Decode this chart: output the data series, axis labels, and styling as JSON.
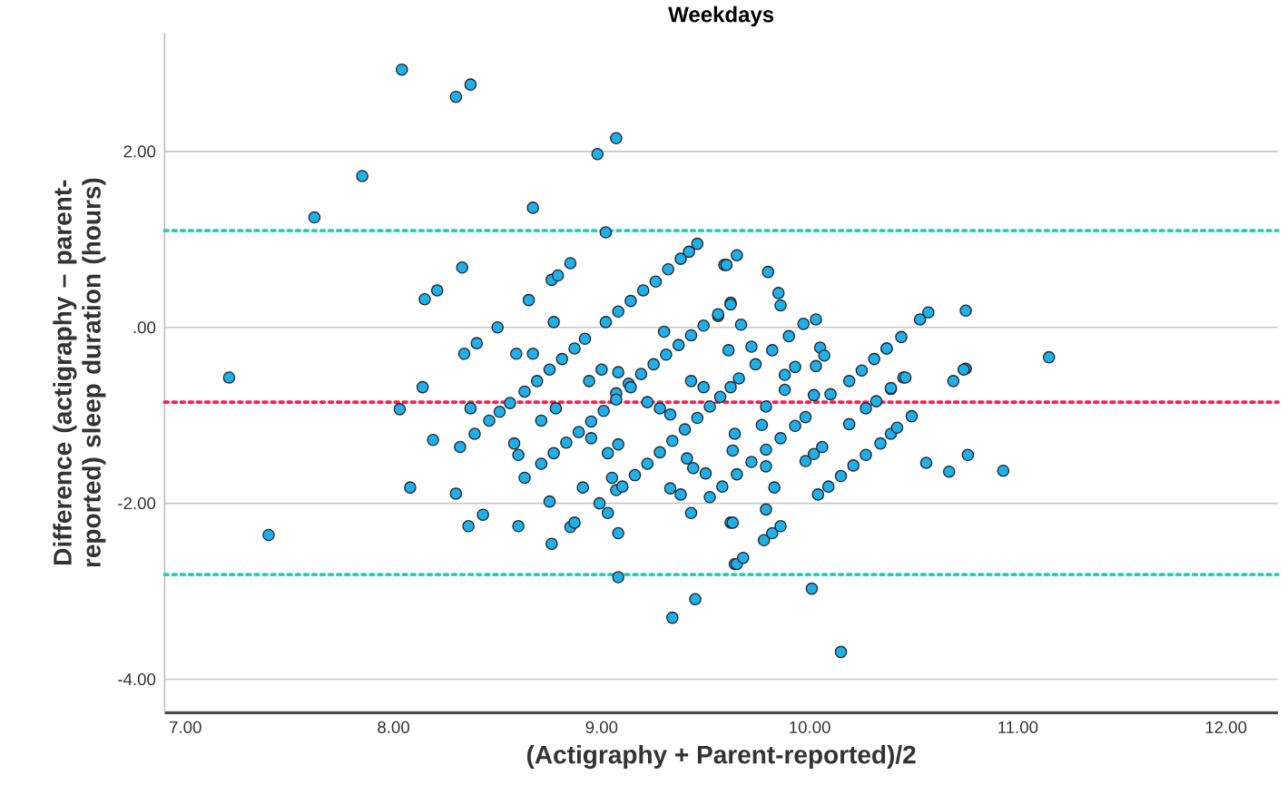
{
  "chart_data": {
    "type": "scatter",
    "title": "Weekdays",
    "xlabel": "(Actigraphy + Parent-reported)/2",
    "ylabel": "Difference (actigraphy – parent-reported) sleep duration (hours)",
    "color": "#1fb0ec",
    "marker": "circle",
    "grid": "y",
    "xlim": [
      6.9,
      12.25
    ],
    "ylim": [
      -4.38,
      3.35
    ],
    "xticks": [
      {
        "value": 7,
        "label": "7.00"
      },
      {
        "value": 8,
        "label": "8.00"
      },
      {
        "value": 9,
        "label": "9.00"
      },
      {
        "value": 10,
        "label": "10.00"
      },
      {
        "value": 11,
        "label": "11.00"
      },
      {
        "value": 12,
        "label": "12.00"
      }
    ],
    "yticks": [
      {
        "value": -4,
        "label": "-4.00"
      },
      {
        "value": -2,
        "label": "-2.00"
      },
      {
        "value": 0,
        "label": ".00"
      },
      {
        "value": 2,
        "label": "2.00"
      }
    ],
    "ref_lines": [
      {
        "axis": "y",
        "value": 1.1,
        "color": "#1ed3b5",
        "line_style": "dotted"
      },
      {
        "axis": "y",
        "value": -0.85,
        "color": "#ff1a4f",
        "line_style": "dotted"
      },
      {
        "axis": "y",
        "value": -2.81,
        "color": "#1ed3b5",
        "line_style": "dotted"
      }
    ],
    "x": [
      8.04,
      8.3,
      8.37,
      7.85,
      7.62,
      8.67,
      8.98,
      9.07,
      9.02,
      7.21,
      8.33,
      8.15,
      8.21,
      8.34,
      8.4,
      8.5,
      8.65,
      8.76,
      8.79,
      8.85,
      8.77,
      8.59,
      8.67,
      8.14,
      8.94,
      9.0,
      9.08,
      9.3,
      9.59,
      9.62,
      9.6,
      9.65,
      9.8,
      9.85,
      9.86,
      9.62,
      9.67,
      9.56,
      9.61,
      9.72,
      10.03,
      10.05,
      10.07,
      10.03,
      9.88,
      9.93,
      9.88,
      10.37,
      10.45,
      10.39,
      10.53,
      10.57,
      10.75,
      11.15,
      10.69,
      10.75,
      7.4,
      8.03,
      8.08,
      8.19,
      8.3,
      8.32,
      8.36,
      8.43,
      8.37,
      8.39,
      8.46,
      8.51,
      8.56,
      8.58,
      8.6,
      8.63,
      8.6,
      8.63,
      8.71,
      8.75,
      8.76,
      8.85,
      8.87,
      8.78,
      8.95,
      8.91,
      8.99,
      9.03,
      9.08,
      9.08,
      9.03,
      9.08,
      9.05,
      9.07,
      9.22,
      9.28,
      9.33,
      9.33,
      9.38,
      9.43,
      9.34,
      9.45,
      9.41,
      9.44,
      9.5,
      9.52,
      9.62,
      9.64,
      9.43,
      9.49,
      9.63,
      9.65,
      9.68,
      10.01,
      10.15,
      9.79,
      9.78,
      9.82,
      9.86,
      9.83,
      9.79,
      9.64,
      9.63,
      9.77,
      9.79,
      10.04,
      9.98,
      10.02,
      10.06,
      10.02,
      10.1,
      9.98,
      10.19,
      10.27,
      10.32,
      10.39,
      10.46,
      10.39,
      10.42,
      10.49,
      10.56,
      10.67,
      10.76,
      10.93,
      10.74,
      8.69,
      8.75,
      8.81,
      8.87,
      8.92,
      9.02,
      9.08,
      9.14,
      9.2,
      9.26,
      9.32,
      9.38,
      9.42,
      9.46,
      9.07,
      9.13,
      9.19,
      9.25,
      9.31,
      9.37,
      9.43,
      9.49,
      9.56,
      8.71,
      8.77,
      8.83,
      8.89,
      8.95,
      9.01,
      9.07,
      9.14,
      9.1,
      9.16,
      9.22,
      9.28,
      9.34,
      9.4,
      9.46,
      9.52,
      9.57,
      9.62,
      9.66,
      9.74,
      9.82,
      9.9,
      9.97,
      9.58,
      9.65,
      9.72,
      9.79,
      9.86,
      9.93,
      10.09,
      10.15,
      10.21,
      10.27,
      10.34,
      10.19,
      10.25,
      10.31,
      10.37,
      10.44
    ],
    "values": [
      2.93,
      2.62,
      2.76,
      1.72,
      1.25,
      1.36,
      1.97,
      2.15,
      1.08,
      -0.57,
      0.68,
      0.32,
      0.42,
      -0.3,
      -0.18,
      0.0,
      0.31,
      0.54,
      0.59,
      0.73,
      0.06,
      -0.3,
      -0.3,
      -0.68,
      -0.61,
      -0.48,
      -0.51,
      -0.05,
      0.71,
      0.28,
      0.71,
      0.82,
      0.63,
      0.39,
      0.25,
      0.26,
      0.03,
      0.13,
      -0.26,
      -0.22,
      0.09,
      -0.23,
      -0.32,
      -0.44,
      -0.54,
      -0.45,
      -0.71,
      -0.24,
      -0.57,
      -0.7,
      0.09,
      0.17,
      0.19,
      -0.34,
      -0.61,
      -0.47,
      -2.36,
      -0.93,
      -1.82,
      -1.28,
      -1.89,
      -1.36,
      -2.26,
      -2.13,
      -0.92,
      -1.21,
      -1.06,
      -0.96,
      -0.86,
      -1.32,
      -1.45,
      -1.71,
      -2.26,
      -0.73,
      -1.06,
      -1.98,
      -2.46,
      -2.27,
      -2.22,
      -0.92,
      -1.26,
      -1.82,
      -2.0,
      -2.11,
      -2.34,
      -2.84,
      -1.43,
      -1.33,
      -1.71,
      -1.85,
      -0.85,
      -0.92,
      -0.99,
      -1.83,
      -1.9,
      -2.11,
      -3.3,
      -3.09,
      -1.49,
      -1.6,
      -1.66,
      -1.93,
      -2.22,
      -2.69,
      -0.61,
      -0.68,
      -2.22,
      -2.69,
      -2.62,
      -2.97,
      -3.69,
      -2.07,
      -2.42,
      -2.34,
      -2.26,
      -1.82,
      -1.58,
      -1.21,
      -1.4,
      -1.11,
      -0.9,
      -1.9,
      -1.52,
      -1.44,
      -1.36,
      -0.77,
      -0.76,
      -1.02,
      -1.1,
      -0.92,
      -0.84,
      -0.69,
      -0.57,
      -1.21,
      -1.14,
      -1.01,
      -1.54,
      -1.64,
      -1.45,
      -1.63,
      -0.48,
      -0.61,
      -0.48,
      -0.36,
      -0.24,
      -0.13,
      0.06,
      0.18,
      0.3,
      0.42,
      0.52,
      0.66,
      0.78,
      0.86,
      0.95,
      -0.75,
      -0.64,
      -0.53,
      -0.42,
      -0.31,
      -0.2,
      -0.09,
      0.02,
      0.15,
      -1.55,
      -1.43,
      -1.31,
      -1.19,
      -1.07,
      -0.95,
      -0.82,
      -0.68,
      -1.81,
      -1.68,
      -1.55,
      -1.42,
      -1.29,
      -1.16,
      -1.03,
      -0.9,
      -0.79,
      -0.68,
      -0.58,
      -0.42,
      -0.26,
      -0.1,
      0.04,
      -1.81,
      -1.67,
      -1.53,
      -1.39,
      -1.26,
      -1.12,
      -1.81,
      -1.69,
      -1.57,
      -1.45,
      -1.32,
      -0.61,
      -0.49,
      -0.36,
      -0.24,
      -0.11
    ]
  }
}
